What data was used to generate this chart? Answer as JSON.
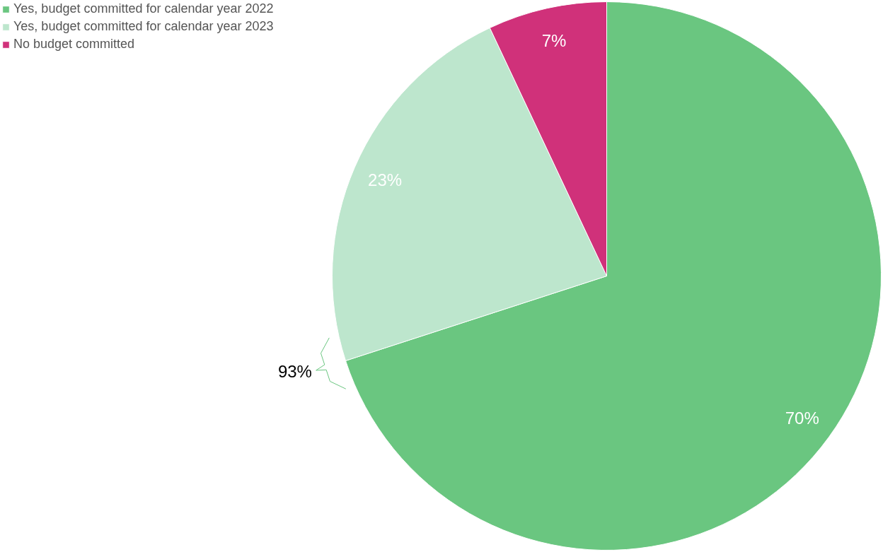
{
  "chart_data": {
    "type": "pie",
    "categories": [
      "Yes, budget committed for calendar year 2022",
      "Yes, budget committed for calendar year 2023",
      "No budget committed"
    ],
    "values": [
      70,
      23,
      7
    ],
    "colors": [
      "#6ac680",
      "#bde6cd",
      "#d0317a"
    ],
    "value_labels": [
      "70%",
      "23%",
      "7%"
    ],
    "legend": "top left",
    "annotations": [
      "93%"
    ]
  }
}
